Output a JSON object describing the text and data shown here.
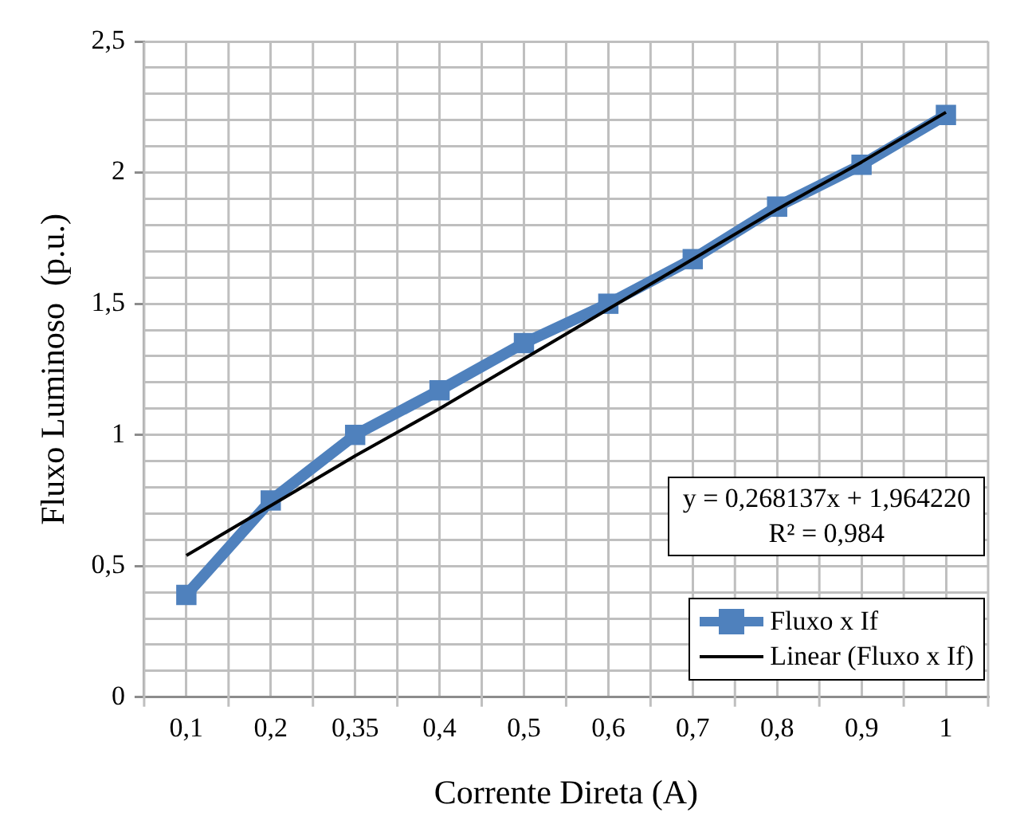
{
  "chart_data": {
    "type": "line",
    "xlabel": "Corrente Direta (A)",
    "ylabel": "Fluxo Luminoso  (p.u.)",
    "categories": [
      "0,1",
      "0,2",
      "0,35",
      "0,4",
      "0,5",
      "0,6",
      "0,7",
      "0,8",
      "0,9",
      "1"
    ],
    "series": [
      {
        "name": "Fluxo x If",
        "color": "#4f81bd",
        "marker": "square",
        "values": [
          0.39,
          0.75,
          1.0,
          1.17,
          1.35,
          1.5,
          1.67,
          1.87,
          2.03,
          2.22
        ]
      },
      {
        "name": "Linear (Fluxo x If)",
        "color": "#000000",
        "marker": "none",
        "values": [
          0.54,
          0.73,
          0.92,
          1.1,
          1.29,
          1.48,
          1.67,
          1.86,
          2.04,
          2.23
        ]
      }
    ],
    "ylim": [
      0,
      2.5
    ],
    "yticks": [
      0,
      {
        "value": 0.1,
        "label": null
      },
      {
        "value": 0.2,
        "label": null
      },
      {
        "value": 0.3,
        "label": null
      },
      {
        "value": 0.4,
        "label": null
      },
      {
        "value": 0.5,
        "label": "0,5"
      },
      {
        "value": 0.6,
        "label": null
      },
      {
        "value": 0.7,
        "label": null
      },
      {
        "value": 0.8,
        "label": null
      },
      {
        "value": 0.9,
        "label": null
      },
      1,
      {
        "value": 1.1,
        "label": null
      },
      {
        "value": 1.2,
        "label": null
      },
      {
        "value": 1.3,
        "label": null
      },
      {
        "value": 1.4,
        "label": null
      },
      {
        "value": 1.5,
        "label": "1,5"
      },
      {
        "value": 1.6,
        "label": null
      },
      {
        "value": 1.7,
        "label": null
      },
      {
        "value": 1.8,
        "label": null
      },
      {
        "value": 1.9,
        "label": null
      },
      2,
      {
        "value": 2.1,
        "label": null
      },
      {
        "value": 2.2,
        "label": null
      },
      {
        "value": 2.3,
        "label": null
      },
      {
        "value": 2.4,
        "label": null
      },
      {
        "value": 2.5,
        "label": "2,5"
      }
    ],
    "grid": true,
    "legend": "bottom right",
    "annotations": [
      "y = 0,268137x + 1,964220",
      "R² = 0,984"
    ]
  }
}
